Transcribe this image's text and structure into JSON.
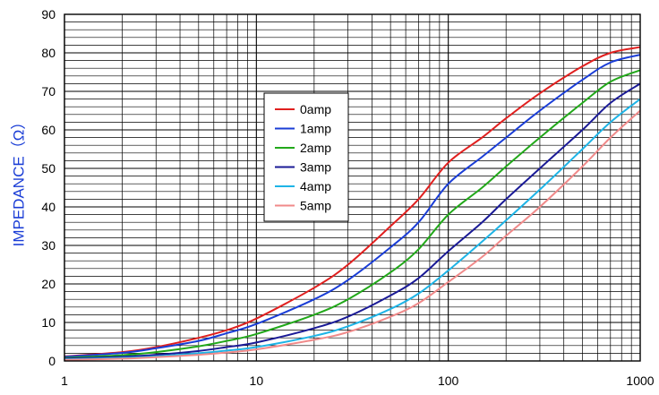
{
  "chart_data": {
    "type": "line",
    "title": "",
    "xlabel": "",
    "ylabel": "IMPEDANCE（Ω）",
    "xscale": "log",
    "xlim": [
      1,
      1000
    ],
    "ylim": [
      0,
      90
    ],
    "grid": true,
    "legend_position": "upper-center",
    "x_tick_labels": [
      "1",
      "10",
      "100",
      "1000"
    ],
    "y_tick_labels": [
      "0",
      "10",
      "20",
      "30",
      "40",
      "50",
      "60",
      "70",
      "80",
      "90"
    ],
    "colors": {
      "axis_label": "#1a3dd6",
      "grid": "#000000"
    },
    "series": [
      {
        "name": "0amp",
        "color": "#e0201f",
        "points": [
          [
            1,
            1.2
          ],
          [
            2,
            2.3
          ],
          [
            3,
            3.6
          ],
          [
            5,
            6.0
          ],
          [
            7,
            8.0
          ],
          [
            10,
            11.0
          ],
          [
            20,
            19.0
          ],
          [
            30,
            25.0
          ],
          [
            50,
            35.0
          ],
          [
            70,
            42.0
          ],
          [
            100,
            51.5
          ],
          [
            150,
            58.0
          ],
          [
            200,
            63.0
          ],
          [
            300,
            69.5
          ],
          [
            500,
            76.5
          ],
          [
            700,
            80.0
          ],
          [
            1000,
            81.5
          ]
        ]
      },
      {
        "name": "1amp",
        "color": "#1a3dd6",
        "points": [
          [
            1,
            1.1
          ],
          [
            2,
            2.1
          ],
          [
            3,
            3.3
          ],
          [
            5,
            5.2
          ],
          [
            7,
            7.2
          ],
          [
            10,
            9.6
          ],
          [
            20,
            16.0
          ],
          [
            30,
            21.0
          ],
          [
            50,
            29.5
          ],
          [
            70,
            36.0
          ],
          [
            100,
            46.0
          ],
          [
            150,
            53.0
          ],
          [
            200,
            58.0
          ],
          [
            300,
            65.0
          ],
          [
            500,
            73.0
          ],
          [
            700,
            77.5
          ],
          [
            1000,
            79.5
          ]
        ]
      },
      {
        "name": "2amp",
        "color": "#22a81a",
        "points": [
          [
            1,
            0.8
          ],
          [
            2,
            1.5
          ],
          [
            3,
            2.3
          ],
          [
            5,
            3.8
          ],
          [
            7,
            5.2
          ],
          [
            10,
            7.0
          ],
          [
            20,
            12.0
          ],
          [
            30,
            16.0
          ],
          [
            50,
            23.0
          ],
          [
            70,
            29.0
          ],
          [
            100,
            38.0
          ],
          [
            150,
            45.0
          ],
          [
            200,
            50.5
          ],
          [
            300,
            58.0
          ],
          [
            500,
            67.0
          ],
          [
            700,
            72.5
          ],
          [
            1000,
            75.5
          ]
        ]
      },
      {
        "name": "3amp",
        "color": "#1a1a96",
        "points": [
          [
            1,
            0.6
          ],
          [
            2,
            1.1
          ],
          [
            3,
            1.6
          ],
          [
            5,
            2.6
          ],
          [
            7,
            3.6
          ],
          [
            10,
            4.8
          ],
          [
            20,
            8.5
          ],
          [
            30,
            11.5
          ],
          [
            50,
            17.0
          ],
          [
            70,
            21.5
          ],
          [
            100,
            28.5
          ],
          [
            150,
            36.0
          ],
          [
            200,
            42.0
          ],
          [
            300,
            50.0
          ],
          [
            500,
            60.0
          ],
          [
            700,
            67.0
          ],
          [
            1000,
            72.0
          ]
        ]
      },
      {
        "name": "4amp",
        "color": "#1eb4e6",
        "points": [
          [
            1,
            0.4
          ],
          [
            2,
            0.8
          ],
          [
            3,
            1.2
          ],
          [
            5,
            2.0
          ],
          [
            7,
            2.7
          ],
          [
            10,
            3.6
          ],
          [
            20,
            6.5
          ],
          [
            30,
            9.0
          ],
          [
            50,
            13.5
          ],
          [
            70,
            17.5
          ],
          [
            100,
            23.5
          ],
          [
            150,
            31.0
          ],
          [
            200,
            36.5
          ],
          [
            300,
            44.5
          ],
          [
            500,
            55.0
          ],
          [
            700,
            62.0
          ],
          [
            1000,
            68.0
          ]
        ]
      },
      {
        "name": "5amp",
        "color": "#f08a8a",
        "points": [
          [
            1,
            0.3
          ],
          [
            2,
            0.6
          ],
          [
            3,
            1.0
          ],
          [
            5,
            1.6
          ],
          [
            7,
            2.2
          ],
          [
            10,
            3.0
          ],
          [
            20,
            5.5
          ],
          [
            30,
            7.5
          ],
          [
            50,
            11.5
          ],
          [
            70,
            15.0
          ],
          [
            100,
            20.5
          ],
          [
            150,
            27.0
          ],
          [
            200,
            32.5
          ],
          [
            300,
            40.0
          ],
          [
            500,
            50.5
          ],
          [
            700,
            58.0
          ],
          [
            1000,
            65.0
          ]
        ]
      }
    ]
  }
}
